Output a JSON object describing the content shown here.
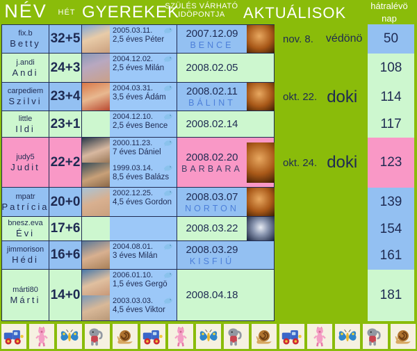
{
  "header": {
    "col_name": "NÉV",
    "col_week": "HÉT",
    "col_children": "GYEREKEK",
    "col_due_line1": "SZÜLÉS VÁRHATÓ",
    "col_due_line2": "IDÖPONTJA",
    "col_actuals": "AKTUÁLISOK",
    "col_remaining_line1": "hátralévö",
    "col_remaining_line2": "nap"
  },
  "colors": {
    "green": "#8ABC0A",
    "blue": "#93C0F2",
    "mint": "#CDF7CF",
    "pink": "#F998C6",
    "child_blue": "#9CC8F8",
    "navy": "#1E2A52",
    "baby_blue": "#4C7FD9",
    "baby_dark": "#3E3E66"
  },
  "rows": [
    {
      "username": "fix.b",
      "name": "Betty",
      "week": "32+5",
      "color": "blue",
      "children": [
        {
          "birth": "2005.03.11.",
          "label": "2,5 éves Péter",
          "photo": "peter"
        }
      ],
      "due_date": "2007.12.09",
      "baby_name": "BENCE",
      "baby_name_color": "blue",
      "ultrasound": "amber",
      "actual": {
        "date": "nov. 8.",
        "who": "védönö",
        "who_big": false
      },
      "days": "50",
      "days_color": "blue"
    },
    {
      "username": "j.andi",
      "name": "Andi",
      "week": "24+3",
      "color": "mint",
      "children": [
        {
          "birth": "2004.12.02.",
          "label": "2,5 éves Milán",
          "photo": "milan1"
        }
      ],
      "due_date": "2008.02.05",
      "baby_name": null,
      "ultrasound": null,
      "actual": null,
      "days": "108",
      "days_color": "mint"
    },
    {
      "username": "carpediem",
      "name": "Szilvi",
      "week": "23+4",
      "color": "blue",
      "children": [
        {
          "birth": "2004.03.31.",
          "label": "3,5 éves Ádám",
          "photo": "adam"
        }
      ],
      "due_date": "2008.02.11",
      "baby_name": "BÁLINT",
      "baby_name_color": "blue",
      "ultrasound": "amber",
      "actual": {
        "date": "okt. 22.",
        "who": "doki",
        "who_big": true
      },
      "days": "114",
      "days_color": "mint"
    },
    {
      "username": "little",
      "name": "Ildi",
      "week": "23+1",
      "color": "mint",
      "children": [
        {
          "birth": "2004.12.10.",
          "label": "2,5 éves Bence",
          "photo": null
        }
      ],
      "due_date": "2008.02.14",
      "baby_name": null,
      "ultrasound": null,
      "actual": null,
      "days": "117",
      "days_color": "mint"
    },
    {
      "username": "judy5",
      "name": "Judit",
      "week": "22+2",
      "color": "pink",
      "children": [
        {
          "birth": "2000.11.23.",
          "label": "7 éves Dániel",
          "photo": "daniel"
        },
        {
          "birth": "1999.03.14.",
          "label": "8,5 éves Balázs",
          "photo": "balazs"
        }
      ],
      "due_date": "2008.02.20",
      "baby_name": "BARBARA",
      "baby_name_color": "dark",
      "ultrasound": "amber",
      "actual": {
        "date": "okt. 24.",
        "who": "doki",
        "who_big": true
      },
      "days": "123",
      "days_color": "pink"
    },
    {
      "username": "mpatr",
      "name": "Patrícia",
      "week": "20+0",
      "color": "blue",
      "children": [
        {
          "birth": "2002.12.25.",
          "label": "4,5 éves Gordon",
          "photo": "gordon"
        }
      ],
      "due_date": "2008.03.07",
      "baby_name": "NORTON",
      "baby_name_color": "blue",
      "ultrasound": "amber",
      "actual": null,
      "days": "139",
      "days_color": "blue"
    },
    {
      "username": "bnesz.eva",
      "name": "Évi",
      "week": "17+6",
      "color": "mint",
      "children": [],
      "due_date": "2008.03.22",
      "baby_name": null,
      "ultrasound": "bw",
      "actual": null,
      "days": "154",
      "days_color": "blue"
    },
    {
      "username": "jimmorison",
      "name": "Hédi",
      "week": "16+6",
      "color": "blue",
      "children": [
        {
          "birth": "2004.08.01.",
          "label": "3 éves Milán",
          "photo": "milan2"
        }
      ],
      "due_date": "2008.03.29",
      "baby_name": "KISFIÚ",
      "baby_name_color": "blue",
      "ultrasound": null,
      "actual": null,
      "days": "161",
      "days_color": "blue"
    },
    {
      "username": "márti80",
      "name": "Márti",
      "week": "14+0",
      "color": "mint",
      "children": [
        {
          "birth": "2006.01.10.",
          "label": "1,5 éves Gergö",
          "photo": "gergo"
        },
        {
          "birth": "2003.03.03.",
          "label": "4,5 éves Viktor",
          "photo": "viktor"
        }
      ],
      "due_date": "2008.04.18",
      "baby_name": null,
      "ultrasound": null,
      "actual": null,
      "days": "181",
      "days_color": "mint"
    }
  ],
  "footer": {
    "tiles": [
      "truck",
      "piglet",
      "butterfly",
      "elephant",
      "snail",
      "truck",
      "piglet",
      "butterfly",
      "elephant",
      "snail",
      "truck",
      "piglet",
      "butterfly",
      "elephant",
      "snail"
    ]
  }
}
